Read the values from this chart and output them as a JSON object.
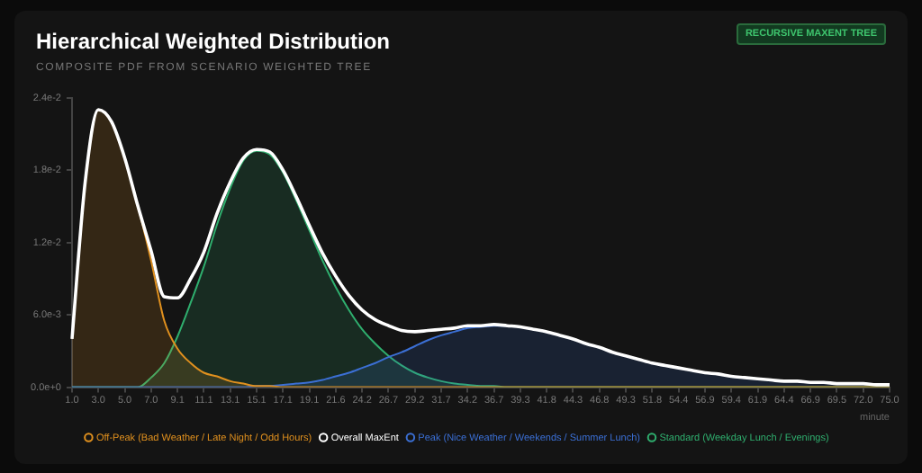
{
  "chart_data": {
    "type": "area",
    "title": "Hierarchical Weighted Distribution",
    "subtitle": "COMPOSITE PDF FROM SCENARIO WEIGHTED TREE",
    "annotations": [
      "RECURSIVE MAXENT TREE"
    ],
    "xlabel": "minute",
    "categories": [
      "1.0",
      null,
      "3.0",
      null,
      "5.0",
      null,
      "7.0",
      null,
      "9.1",
      null,
      "11.1",
      null,
      "13.1",
      null,
      "15.1",
      null,
      "17.1",
      null,
      "19.1",
      null,
      "21.6",
      null,
      "24.2",
      null,
      "26.7",
      null,
      "29.2",
      null,
      "31.7",
      null,
      "34.2",
      null,
      "36.7",
      null,
      "39.3",
      null,
      "41.8",
      null,
      "44.3",
      null,
      "46.8",
      null,
      "49.3",
      null,
      "51.8",
      null,
      "54.4",
      null,
      "56.9",
      null,
      "59.4",
      null,
      "61.9",
      null,
      "64.4",
      null,
      "66.9",
      null,
      "69.5",
      null,
      "72.0",
      null,
      "75.0"
    ],
    "ylim": [
      0,
      0.024
    ],
    "yticks": [
      {
        "value": 0,
        "label": "0.0e+0"
      },
      {
        "value": 0.006,
        "label": "6.0e-3"
      },
      {
        "value": 0.012,
        "label": "1.2e-2"
      },
      {
        "value": 0.018,
        "label": "1.8e-2"
      },
      {
        "value": 0.024,
        "label": "2.4e-2"
      }
    ],
    "grid": false,
    "legend": "bottom",
    "series": [
      {
        "name": "Off-Peak (Bad Weather / Late Night / Odd Hours)",
        "color": "#e0901e",
        "values": [
          0.004,
          0.017,
          0.023,
          0.022,
          0.019,
          0.015,
          0.0105,
          0.0055,
          0.0032,
          0.002,
          0.0012,
          0.0009,
          0.0005,
          0.0003,
          0.0001,
          0.0001,
          0,
          0,
          0,
          0,
          0,
          0,
          0,
          0,
          0,
          0,
          0,
          0,
          0,
          0,
          0,
          0,
          0,
          0,
          0,
          0,
          0,
          0,
          0,
          0,
          0,
          0,
          0,
          0,
          0,
          0,
          0,
          0,
          0,
          0,
          0,
          0,
          0,
          0,
          0,
          0,
          0,
          0,
          0,
          0,
          0,
          0,
          0
        ]
      },
      {
        "name": "Overall MaxEnt",
        "type": "line",
        "color": "#ffffff",
        "values": [
          0.004,
          0.017,
          0.023,
          0.022,
          0.019,
          0.015,
          0.0113,
          0.0075,
          0.0074,
          0.009,
          0.0112,
          0.0144,
          0.017,
          0.019,
          0.0197,
          0.0195,
          0.018,
          0.0158,
          0.0134,
          0.0111,
          0.0092,
          0.0076,
          0.0064,
          0.0056,
          0.0051,
          0.0047,
          0.0046,
          0.0047,
          0.0048,
          0.0049,
          0.0051,
          0.0051,
          0.0052,
          0.0051,
          0.005,
          0.0048,
          0.0046,
          0.0043,
          0.004,
          0.0036,
          0.0033,
          0.0029,
          0.0026,
          0.0023,
          0.002,
          0.0018,
          0.0016,
          0.0014,
          0.0012,
          0.0011,
          0.0009,
          0.0008,
          0.0007,
          0.0006,
          0.0005,
          0.0005,
          0.0004,
          0.0004,
          0.0003,
          0.0003,
          0.0003,
          0.0002,
          0.0002
        ]
      },
      {
        "name": "Peak (Nice Weather / Weekends / Summer Lunch)",
        "color": "#3b6fd4",
        "values": [
          0,
          0,
          0,
          0,
          0,
          0,
          0,
          0,
          0,
          0,
          0,
          0,
          0,
          0,
          0.0001,
          0.0001,
          0.0002,
          0.0003,
          0.0004,
          0.0006,
          0.0009,
          0.0012,
          0.0016,
          0.002,
          0.0025,
          0.0029,
          0.0034,
          0.0039,
          0.0043,
          0.0046,
          0.0049,
          0.005,
          0.0051,
          0.0051,
          0.005,
          0.0048,
          0.0046,
          0.0043,
          0.004,
          0.0036,
          0.0033,
          0.0029,
          0.0026,
          0.0023,
          0.002,
          0.0018,
          0.0016,
          0.0014,
          0.0012,
          0.0011,
          0.0009,
          0.0008,
          0.0007,
          0.0006,
          0.0005,
          0.0005,
          0.0004,
          0.0004,
          0.0003,
          0.0003,
          0.0003,
          0.0002,
          0.0002
        ]
      },
      {
        "name": "Standard (Weekday Lunch / Evenings)",
        "color": "#2fae6e",
        "values": [
          0,
          0,
          0,
          0,
          0,
          0,
          0.0008,
          0.002,
          0.0042,
          0.007,
          0.01,
          0.0135,
          0.0165,
          0.0188,
          0.0196,
          0.0193,
          0.0178,
          0.0155,
          0.013,
          0.0105,
          0.0083,
          0.0064,
          0.0048,
          0.0036,
          0.0026,
          0.0018,
          0.0012,
          0.0008,
          0.0005,
          0.0003,
          0.0002,
          0.0001,
          0.0001,
          0,
          0,
          0,
          0,
          0,
          0,
          0,
          0,
          0,
          0,
          0,
          0,
          0,
          0,
          0,
          0,
          0,
          0,
          0,
          0,
          0,
          0,
          0,
          0,
          0,
          0,
          0,
          0,
          0,
          0
        ]
      }
    ]
  }
}
